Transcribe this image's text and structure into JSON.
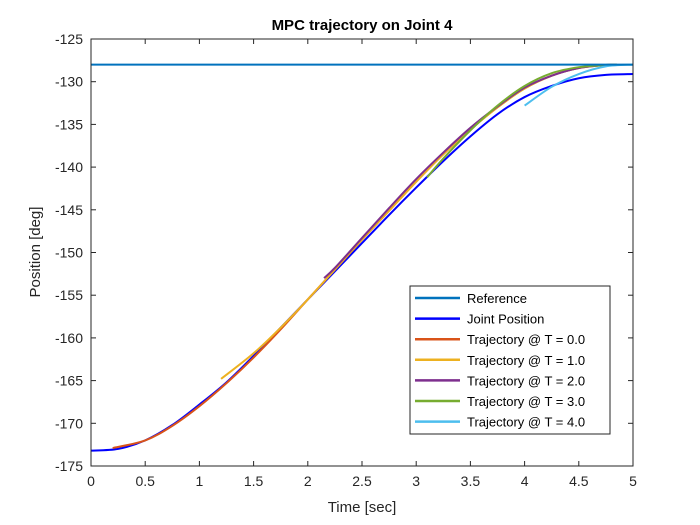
{
  "chart_data": {
    "type": "line",
    "title": "MPC trajectory on Joint 4",
    "xlabel": "Time [sec]",
    "ylabel": "Position [deg]",
    "xlim": [
      0,
      5
    ],
    "ylim": [
      -175,
      -125
    ],
    "xticks": [
      0,
      0.5,
      1,
      1.5,
      2,
      2.5,
      3,
      3.5,
      4,
      4.5,
      5
    ],
    "xtick_labels": [
      "0",
      "0.5",
      "1",
      "1.5",
      "2",
      "2.5",
      "3",
      "3.5",
      "4",
      "4.5",
      "5"
    ],
    "yticks": [
      -175,
      -170,
      -165,
      -160,
      -155,
      -150,
      -145,
      -140,
      -135,
      -130,
      -125
    ],
    "ytick_labels": [
      "-175",
      "-170",
      "-165",
      "-160",
      "-155",
      "-150",
      "-145",
      "-140",
      "-135",
      "-130",
      "-125"
    ],
    "grid": false,
    "legend_position": "lower-right",
    "series": [
      {
        "name": "Reference",
        "color": "#0072BD",
        "x": [
          0,
          5
        ],
        "y": [
          -128,
          -128
        ]
      },
      {
        "name": "Joint Position",
        "color": "#0000FF",
        "x": [
          0,
          0.25,
          0.5,
          0.75,
          1.0,
          1.25,
          1.5,
          1.75,
          2.0,
          2.25,
          2.5,
          2.75,
          3.0,
          3.25,
          3.5,
          3.75,
          4.0,
          4.25,
          4.5,
          4.75,
          5.0
        ],
        "y": [
          -173.2,
          -173.0,
          -172.0,
          -170.2,
          -167.8,
          -165.2,
          -162.1,
          -158.8,
          -155.5,
          -152.2,
          -148.9,
          -145.6,
          -142.4,
          -139.3,
          -136.4,
          -133.8,
          -131.8,
          -130.5,
          -129.6,
          -129.2,
          -129.1
        ]
      },
      {
        "name": "Trajectory @ T = 0.0",
        "color": "#D95319",
        "x": [
          0.2,
          0.5,
          0.75,
          1.0,
          1.25,
          1.5,
          1.75,
          2.0,
          2.25,
          2.5,
          2.75,
          3.0,
          3.25,
          3.5,
          3.75,
          4.0,
          4.25,
          4.5,
          4.75,
          4.85
        ],
        "y": [
          -172.9,
          -172.0,
          -170.3,
          -168.0,
          -165.3,
          -162.3,
          -159.0,
          -155.5,
          -152.0,
          -148.5,
          -145.1,
          -141.7,
          -138.5,
          -135.6,
          -133.0,
          -130.8,
          -129.3,
          -128.4,
          -128.05,
          -128.0
        ]
      },
      {
        "name": "Trajectory @ T = 1.0",
        "color": "#EDB120",
        "x": [
          1.2,
          1.5,
          1.75,
          2.0,
          2.25,
          2.5,
          2.75,
          3.0,
          3.25,
          3.5,
          3.75,
          4.0,
          4.25,
          4.5,
          4.75,
          4.85
        ],
        "y": [
          -164.8,
          -161.8,
          -158.8,
          -155.5,
          -152.0,
          -148.5,
          -145.1,
          -141.7,
          -138.5,
          -135.6,
          -133.0,
          -130.8,
          -129.3,
          -128.4,
          -128.05,
          -128.0
        ]
      },
      {
        "name": "Trajectory @ T = 2.0",
        "color": "#7E2F8E",
        "x": [
          2.15,
          2.25,
          2.5,
          2.75,
          3.0,
          3.25,
          3.5,
          3.75,
          4.0,
          4.25,
          4.5,
          4.75,
          4.85
        ],
        "y": [
          -153.0,
          -151.8,
          -148.3,
          -144.8,
          -141.4,
          -138.3,
          -135.4,
          -132.9,
          -130.7,
          -129.3,
          -128.4,
          -128.05,
          -128.0
        ]
      },
      {
        "name": "Trajectory @ T = 3.0",
        "color": "#77AC30",
        "x": [
          3.1,
          3.25,
          3.5,
          3.75,
          4.0,
          4.25,
          4.5,
          4.75,
          4.85
        ],
        "y": [
          -141.2,
          -139.0,
          -135.7,
          -132.8,
          -130.5,
          -129.0,
          -128.3,
          -128.05,
          -128.0
        ]
      },
      {
        "name": "Trajectory @ T = 4.0",
        "color": "#4DBEEE",
        "x": [
          4.0,
          4.25,
          4.5,
          4.75,
          5.0
        ],
        "y": [
          -132.8,
          -130.6,
          -129.1,
          -128.2,
          -128.0
        ]
      }
    ]
  }
}
